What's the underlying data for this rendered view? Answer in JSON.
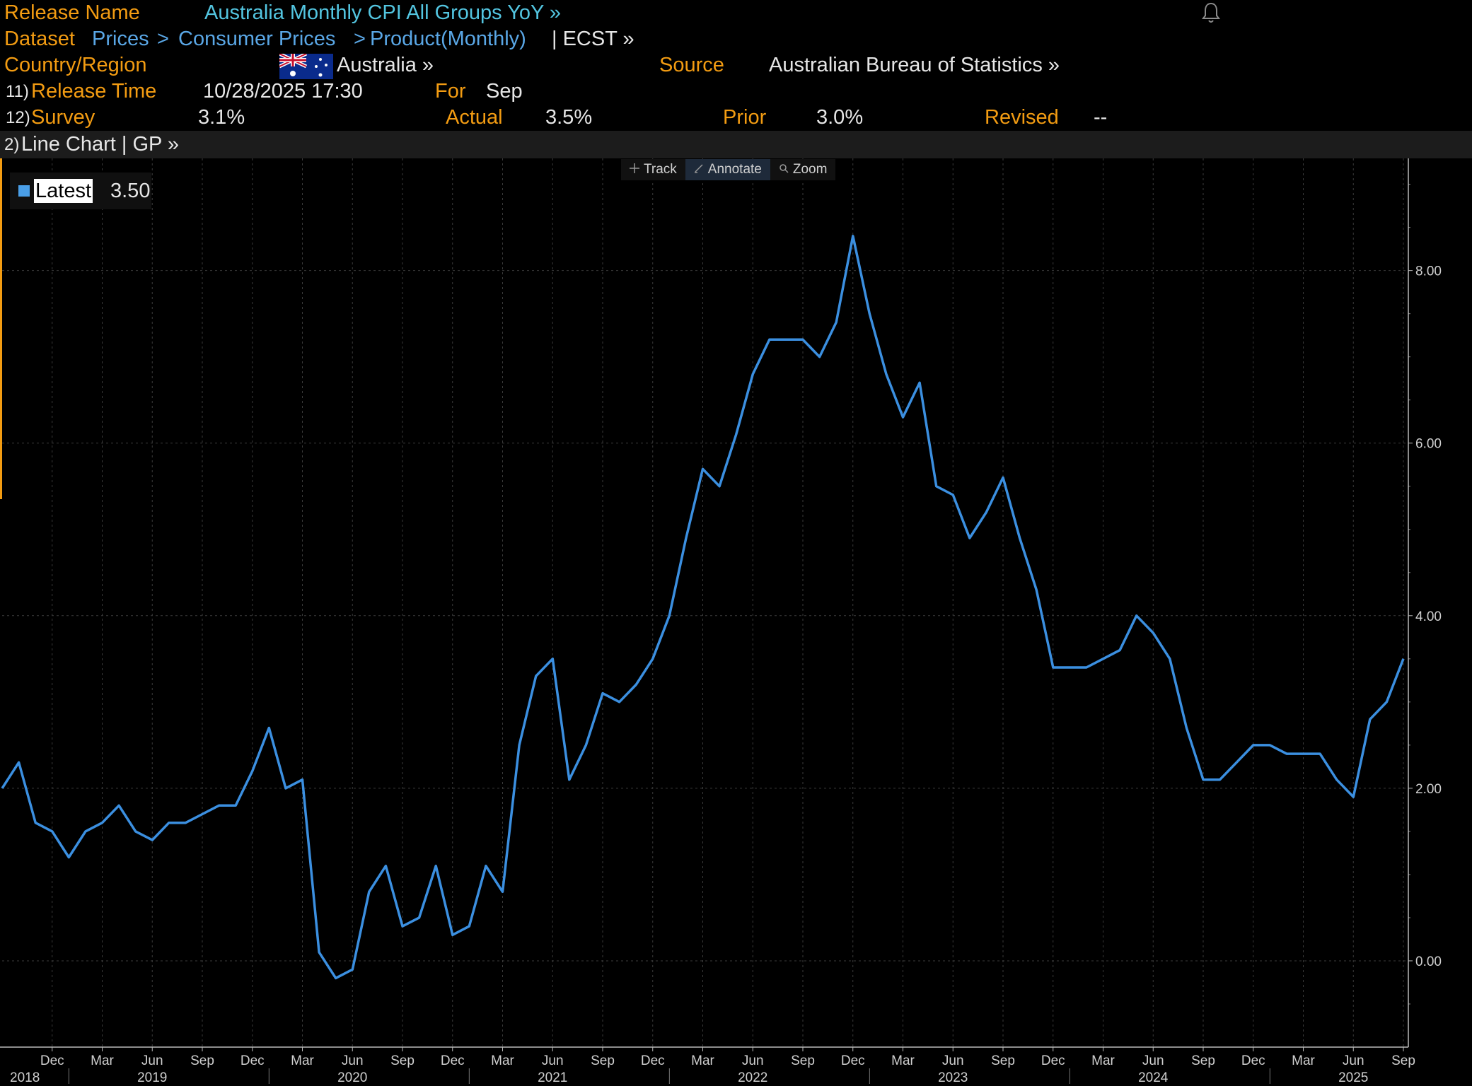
{
  "header": {
    "release_label": "Release Name",
    "release_value": "Australia Monthly CPI All Groups YoY »",
    "dataset_label": "Dataset",
    "dataset_path": [
      "Prices",
      "Consumer Prices",
      "Product(Monthly)"
    ],
    "dataset_tail": "| ECST »",
    "country_label": "Country/Region",
    "country_value": "Australia »",
    "source_label": "Source",
    "source_value": "Australian Bureau of Statistics »",
    "release_time_num": "11)",
    "release_time_label": "Release Time",
    "release_time_value": "10/28/2025 17:30",
    "for_label": "For",
    "for_value": "Sep",
    "survey_num": "12)",
    "survey_label": "Survey",
    "survey_value": "3.1%",
    "actual_label": "Actual",
    "actual_value": "3.5%",
    "prior_label": "Prior",
    "prior_value": "3.0%",
    "revised_label": "Revised",
    "revised_value": "--"
  },
  "chart_bar": {
    "num": "2)",
    "label": "Line Chart | GP »"
  },
  "toolbar": {
    "track": "Track",
    "annotate": "Annotate",
    "zoom": "Zoom"
  },
  "legend": {
    "label": "Latest",
    "value": "3.50"
  },
  "colors": {
    "accent": "#f39c12",
    "line": "#3b8fe0",
    "title": "#53c5e0"
  },
  "icons": {
    "bell": "bell-icon",
    "flag": "australia-flag-icon"
  },
  "chart_data": {
    "type": "line",
    "title": "",
    "xlabel": "",
    "ylabel": "",
    "ylim": [
      -1.0,
      9.3
    ],
    "y_ticks": [
      "0.00",
      "2.00",
      "4.00",
      "6.00",
      "8.00"
    ],
    "month_ticks": [
      "Dec",
      "Mar",
      "Jun",
      "Sep",
      "Dec",
      "Mar",
      "Jun",
      "Sep",
      "Dec",
      "Mar",
      "Jun",
      "Sep",
      "Dec",
      "Mar",
      "Jun",
      "Sep",
      "Dec",
      "Mar",
      "Jun",
      "Sep",
      "Dec",
      "Mar",
      "Jun",
      "Sep",
      "Dec",
      "Mar",
      "Jun",
      "Sep"
    ],
    "year_ticks": [
      "2018",
      "2019",
      "2020",
      "2021",
      "2022",
      "2023",
      "2024",
      "2025"
    ],
    "start": "2018-09",
    "series": [
      {
        "values": [
          2.0,
          2.3,
          1.6,
          1.5,
          1.2,
          1.5,
          1.6,
          1.8,
          1.5,
          1.4,
          1.6,
          1.6,
          1.7,
          1.8,
          1.8,
          2.2,
          2.7,
          2.0,
          2.1,
          0.1,
          -0.2,
          -0.1,
          0.8,
          1.1,
          0.4,
          0.5,
          1.1,
          0.3,
          0.4,
          1.1,
          0.8,
          2.5,
          3.3,
          3.5,
          2.1,
          2.5,
          3.1,
          3.0,
          3.2,
          3.5,
          4.0,
          4.9,
          5.7,
          5.5,
          6.1,
          6.8,
          7.2,
          7.2,
          7.2,
          7.0,
          7.4,
          8.4,
          7.5,
          6.8,
          6.3,
          6.7,
          5.5,
          5.4,
          4.9,
          5.2,
          5.6,
          4.9,
          4.3,
          3.4,
          3.4,
          3.4,
          3.5,
          3.6,
          4.0,
          3.8,
          3.5,
          2.7,
          2.1,
          2.1,
          2.3,
          2.5,
          2.5,
          2.4,
          2.4,
          2.4,
          2.1,
          1.9,
          2.8,
          3.0,
          3.5
        ]
      }
    ]
  }
}
